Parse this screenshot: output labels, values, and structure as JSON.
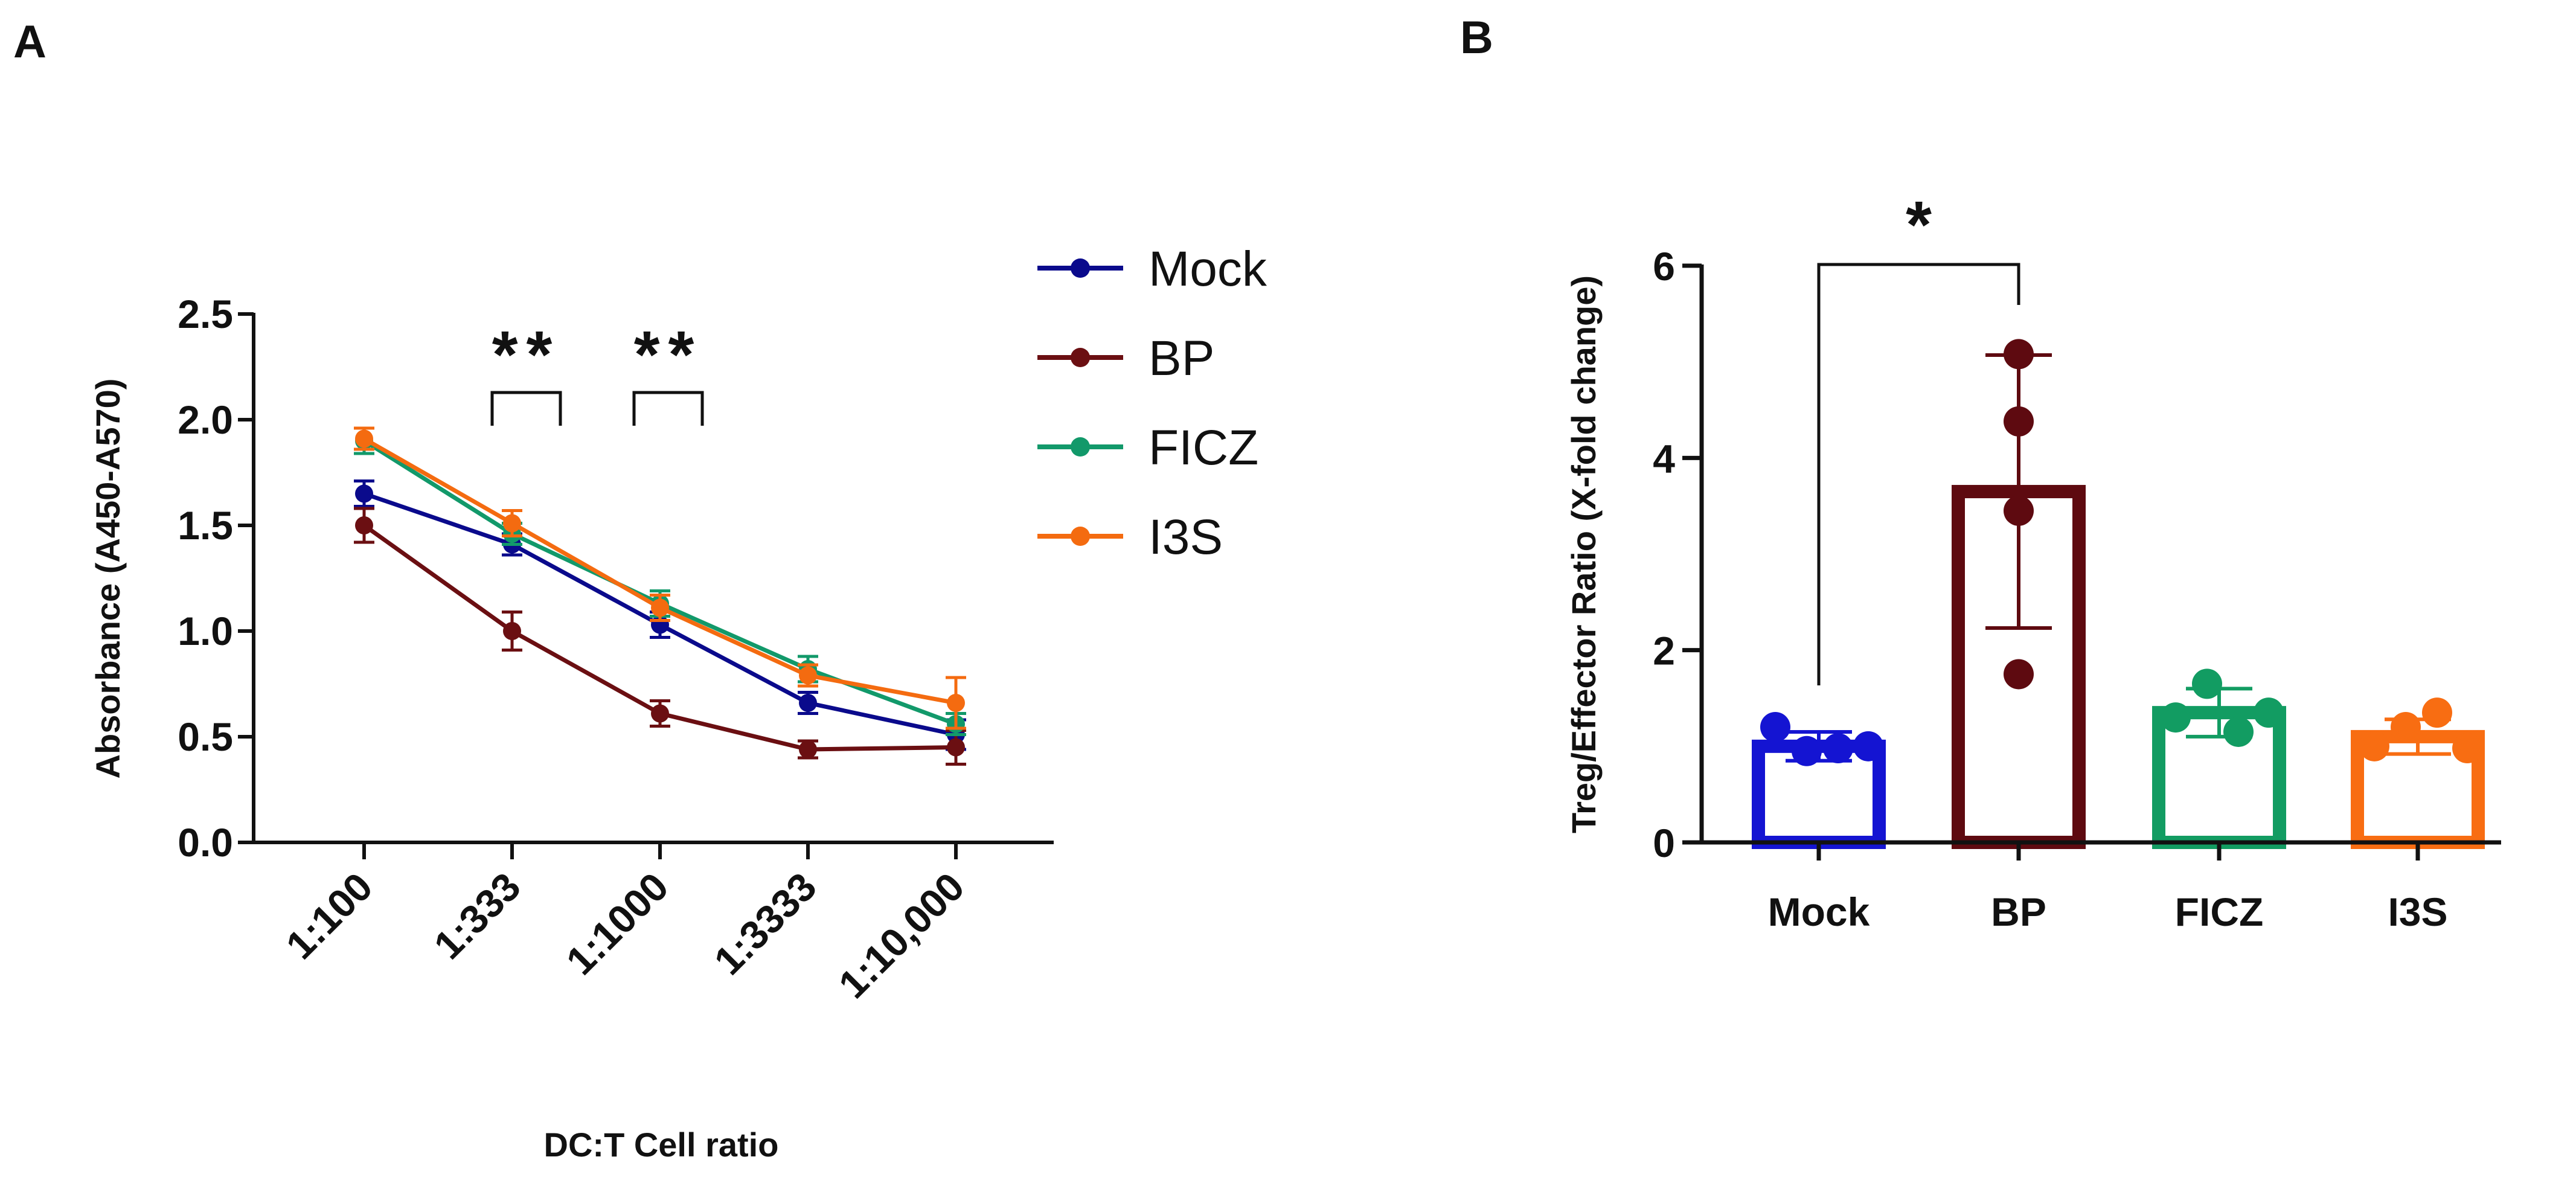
{
  "panels": {
    "a_letter": "A",
    "b_letter": "B"
  },
  "chart_data": [
    {
      "panel": "A",
      "type": "line",
      "title": "",
      "xlabel": "DC:T Cell ratio",
      "ylabel": "Absorbance (A450-A570)",
      "categories": [
        "1:100",
        "1:333",
        "1:1000",
        "1:3333",
        "1:10,000"
      ],
      "ylim": [
        0,
        2.5
      ],
      "yticks": [
        "0.0",
        "0.5",
        "1.0",
        "1.5",
        "2.0",
        "2.5"
      ],
      "legend_position": "right",
      "series": [
        {
          "name": "Mock",
          "color": "#0a0a8c",
          "values": [
            1.65,
            1.41,
            1.03,
            0.66,
            0.51
          ],
          "errors": [
            0.06,
            0.05,
            0.06,
            0.05,
            0.07
          ]
        },
        {
          "name": "BP",
          "color": "#6b0f12",
          "values": [
            1.5,
            1.0,
            0.61,
            0.44,
            0.45
          ],
          "errors": [
            0.08,
            0.09,
            0.06,
            0.04,
            0.08
          ]
        },
        {
          "name": "FICZ",
          "color": "#12996a",
          "values": [
            1.9,
            1.46,
            1.13,
            0.82,
            0.56
          ],
          "errors": [
            0.06,
            0.05,
            0.06,
            0.06,
            0.05
          ]
        },
        {
          "name": "I3S",
          "color": "#f46b10",
          "values": [
            1.91,
            1.51,
            1.11,
            0.79,
            0.66
          ],
          "errors": [
            0.05,
            0.06,
            0.06,
            0.05,
            0.12
          ]
        }
      ],
      "significance": [
        {
          "label": "**",
          "from": "1:333"
        },
        {
          "label": "**",
          "from": "1:1000"
        }
      ]
    },
    {
      "panel": "B",
      "type": "bar",
      "title": "",
      "xlabel": "",
      "ylabel": "Treg/Effector Ratio (X-fold change)",
      "categories": [
        "Mock",
        "BP",
        "FICZ",
        "I3S"
      ],
      "ylim": [
        0,
        6
      ],
      "yticks": [
        "0",
        "2",
        "4",
        "6"
      ],
      "series": [
        {
          "name": "Mock",
          "color": "#1414d2",
          "value": 1.0,
          "sd": 0.15,
          "points": [
            1.2,
            0.95,
            0.98,
            1.0
          ]
        },
        {
          "name": "BP",
          "color": "#5e0a10",
          "value": 3.65,
          "sd": 1.42,
          "points": [
            5.08,
            4.38,
            3.45,
            1.75
          ]
        },
        {
          "name": "FICZ",
          "color": "#129c62",
          "value": 1.35,
          "sd": 0.25,
          "points": [
            1.3,
            1.65,
            1.15,
            1.35
          ]
        },
        {
          "name": "I3S",
          "color": "#f86d12",
          "value": 1.1,
          "sd": 0.18,
          "points": [
            1.0,
            1.2,
            1.35,
            0.98
          ]
        }
      ],
      "significance": [
        {
          "label": "*",
          "between": [
            "Mock",
            "BP"
          ]
        }
      ]
    }
  ]
}
